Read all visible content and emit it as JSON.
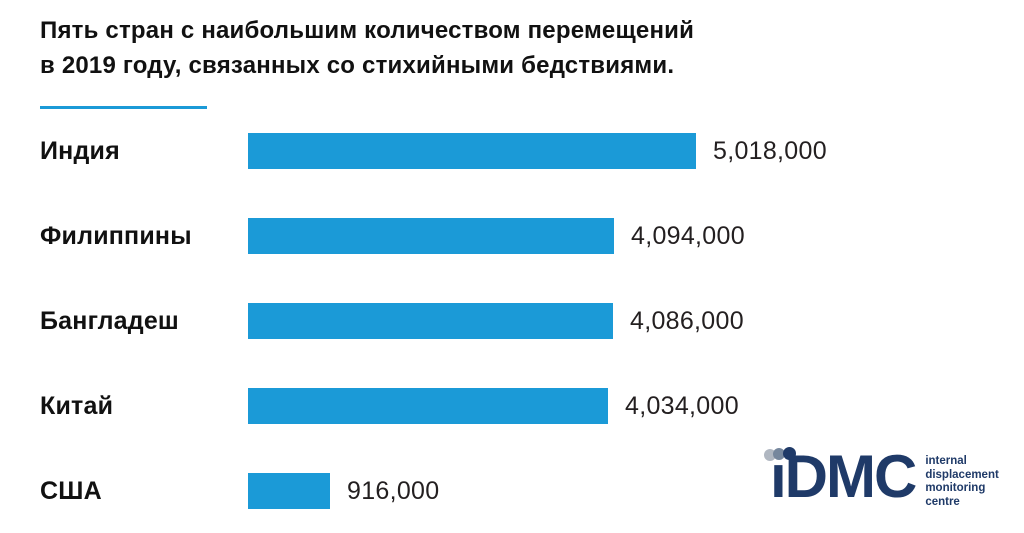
{
  "title": {
    "line1": "Пять стран с наибольшим количеством перемещений",
    "line2": "в 2019 году, связанных со стихийными бедствиями."
  },
  "colors": {
    "bar_color": "#1b9ad7",
    "accent_underline": "#1b9ad7",
    "title_text": "#111111",
    "label_text": "#111111",
    "value_text": "#231f20",
    "logo_navy": "#1f3a68",
    "logo_dot_light": "#b0b7c1",
    "logo_dot_mid": "#76879d",
    "page_bg": "#ffffff"
  },
  "chart_data": {
    "type": "bar",
    "orientation": "horizontal",
    "title": "Пять стран с наибольшим количеством перемещений в 2019 году, связанных со стихийными бедствиями.",
    "categories": [
      "Индия",
      "Филиппины",
      "Бангладеш",
      "Китай",
      "США"
    ],
    "values": [
      5018000,
      4094000,
      4086000,
      4034000,
      916000
    ],
    "value_labels": [
      "5,018,000",
      "4,094,000",
      "4,086,000",
      "4,034,000",
      "916,000"
    ],
    "xlim": [
      0,
      5018000
    ],
    "grid": false,
    "legend": false,
    "bar_color": "#1b9ad7"
  },
  "logo": {
    "wordmark": "ıDMC",
    "tagline_lines": [
      "internal",
      "displacement",
      "monitoring",
      "centre"
    ]
  }
}
